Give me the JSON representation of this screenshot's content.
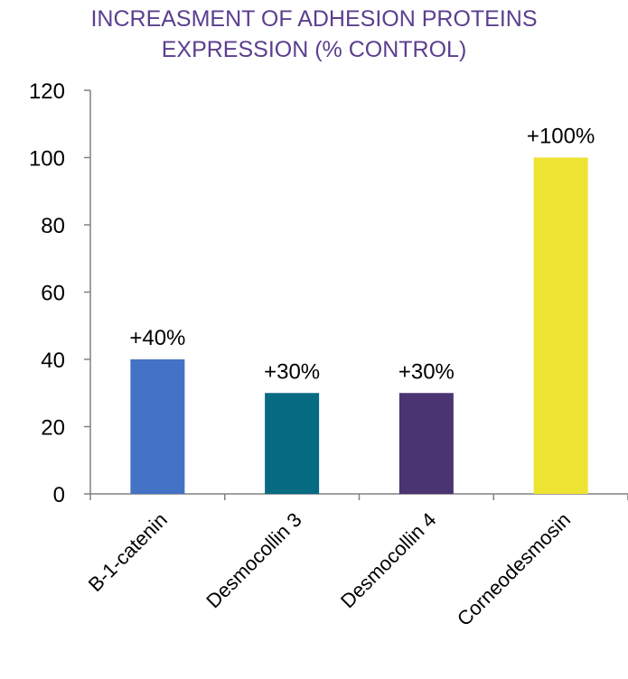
{
  "chart_data": {
    "type": "bar",
    "title_lines": [
      "INCREASMENT OF ADHESION PROTEINS",
      "EXPRESSION  (% CONTROL)"
    ],
    "categories": [
      "B-1-catenin",
      "Desmocollin 3",
      "Desmocollin 4",
      "Corneodesmosin"
    ],
    "values": [
      40,
      30,
      30,
      100
    ],
    "data_labels": [
      "+40%",
      "+30%",
      "+30%",
      "+100%"
    ],
    "colors": [
      "#4472c4",
      "#056a82",
      "#4a3472",
      "#ede332"
    ],
    "yticks": [
      "0",
      "20",
      "40",
      "60",
      "80",
      "100",
      "120"
    ],
    "ylim": [
      0,
      120
    ],
    "xlabel": "",
    "ylabel": "",
    "grid": false,
    "legend": "none",
    "title_color": "#5b3f8e"
  }
}
